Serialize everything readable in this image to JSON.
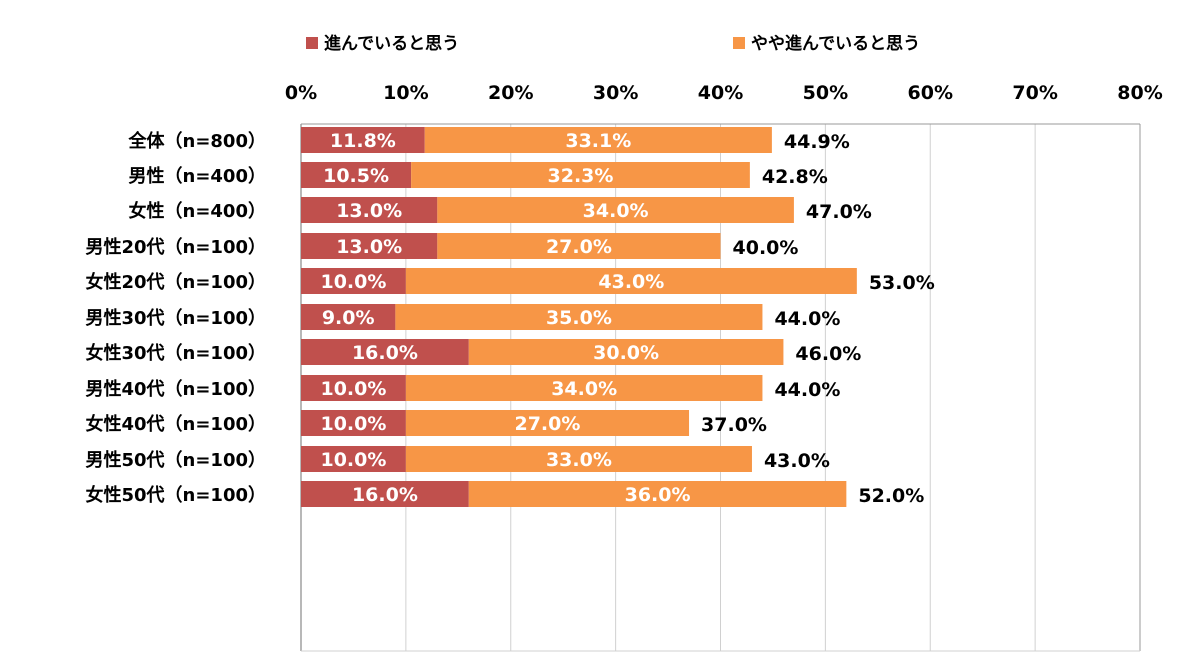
{
  "chart_data": {
    "type": "bar",
    "orientation": "horizontal",
    "stacked": true,
    "categories": [
      "全体（n=800）",
      "男性（n=400）",
      "女性（n=400）",
      "男性20代（n=100）",
      "女性20代（n=100）",
      "男性30代（n=100）",
      "女性30代（n=100）",
      "男性40代（n=100）",
      "女性40代（n=100）",
      "男性50代（n=100）",
      "女性50代（n=100）"
    ],
    "groups": [
      [
        0,
        1,
        2
      ],
      [
        3,
        4
      ],
      [
        5,
        6
      ],
      [
        7,
        8
      ],
      [
        9,
        10
      ]
    ],
    "series": [
      {
        "name": "進んでいると思う",
        "color": "#C0504D",
        "values": [
          11.8,
          10.5,
          13.0,
          13.0,
          10.0,
          9.0,
          16.0,
          10.0,
          10.0,
          10.0,
          16.0
        ]
      },
      {
        "name": "やや進んでいると思う",
        "color": "#F79646",
        "values": [
          33.1,
          32.3,
          34.0,
          27.0,
          43.0,
          35.0,
          30.0,
          34.0,
          27.0,
          33.0,
          36.0
        ]
      }
    ],
    "totals": [
      44.9,
      42.8,
      47.0,
      40.0,
      53.0,
      44.0,
      46.0,
      44.0,
      37.0,
      43.0,
      52.0
    ],
    "xlim": [
      0,
      80
    ],
    "xticks": [
      0,
      10,
      20,
      30,
      40,
      50,
      60,
      70,
      80
    ],
    "tick_suffix": "%",
    "grid": true,
    "legend_position": "top"
  }
}
